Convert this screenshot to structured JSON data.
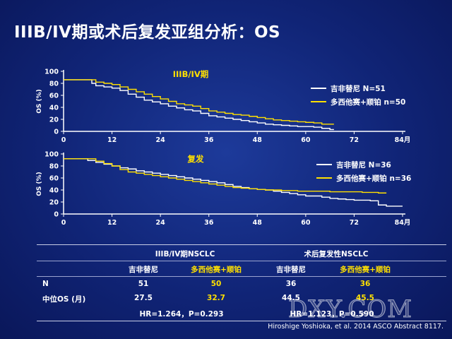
{
  "title": "IIIB/IV期或术后复发亚组分析：OS",
  "chart_data": [
    {
      "type": "line",
      "subtitle": "IIIB/IV期",
      "ylabel": "OS (%)",
      "xlim": [
        0,
        84
      ],
      "ylim": [
        0,
        100
      ],
      "xticks": [
        "0",
        "12",
        "24",
        "36",
        "48",
        "60",
        "72",
        "84月"
      ],
      "yticks": [
        "0",
        "20",
        "40",
        "60",
        "80",
        "100"
      ],
      "legend_position": "right",
      "series": [
        {
          "name": "吉非替尼 N=51",
          "color": "#ffffff",
          "x": [
            0,
            5,
            7,
            8,
            10,
            12,
            14,
            16,
            18,
            20,
            22,
            24,
            26,
            28,
            30,
            32,
            34,
            36,
            38,
            40,
            42,
            44,
            46,
            48,
            50,
            52,
            54,
            56,
            58,
            60,
            62,
            64,
            66,
            67
          ],
          "y": [
            86,
            86,
            80,
            76,
            74,
            72,
            68,
            62,
            57,
            52,
            49,
            46,
            42,
            39,
            36,
            34,
            30,
            26,
            24,
            22,
            20,
            18,
            16,
            14,
            12,
            11,
            10,
            9,
            8,
            8,
            7,
            5,
            3,
            3
          ]
        },
        {
          "name": "多西他赛+顺铂 n=50",
          "color": "#ffe000",
          "x": [
            0,
            6,
            8,
            10,
            12,
            14,
            16,
            18,
            20,
            22,
            24,
            26,
            28,
            30,
            32,
            34,
            36,
            38,
            40,
            42,
            44,
            46,
            48,
            50,
            52,
            54,
            56,
            58,
            60,
            62,
            64,
            67
          ],
          "y": [
            86,
            86,
            82,
            80,
            78,
            74,
            70,
            66,
            62,
            58,
            54,
            50,
            46,
            44,
            42,
            38,
            34,
            32,
            30,
            28,
            27,
            25,
            23,
            21,
            19,
            18,
            17,
            16,
            15,
            14,
            12,
            12
          ]
        }
      ]
    },
    {
      "type": "line",
      "subtitle": "复发",
      "ylabel": "OS (%)",
      "xlim": [
        0,
        84
      ],
      "ylim": [
        0,
        100
      ],
      "xticks": [
        "0",
        "12",
        "24",
        "36",
        "48",
        "60",
        "72",
        "84月"
      ],
      "yticks": [
        "0",
        "20",
        "40",
        "60",
        "80",
        "100"
      ],
      "legend_position": "right",
      "series": [
        {
          "name": "吉非替尼 N=36",
          "color": "#ffffff",
          "x": [
            0,
            4,
            6,
            8,
            10,
            12,
            14,
            16,
            18,
            20,
            22,
            24,
            26,
            28,
            30,
            32,
            34,
            36,
            38,
            40,
            42,
            44,
            46,
            48,
            50,
            52,
            54,
            56,
            58,
            60,
            62,
            64,
            66,
            68,
            70,
            72,
            76,
            78,
            80,
            84
          ],
          "y": [
            92,
            92,
            89,
            86,
            83,
            80,
            77,
            75,
            72,
            70,
            68,
            66,
            64,
            62,
            60,
            58,
            56,
            54,
            52,
            49,
            46,
            44,
            42,
            41,
            40,
            38,
            36,
            34,
            32,
            30,
            30,
            28,
            26,
            25,
            24,
            23,
            22,
            15,
            13,
            13
          ]
        },
        {
          "name": "多西他赛+顺铂 n=36",
          "color": "#ffe000",
          "x": [
            0,
            6,
            8,
            10,
            12,
            14,
            16,
            18,
            20,
            22,
            24,
            26,
            28,
            30,
            32,
            34,
            36,
            38,
            40,
            42,
            44,
            46,
            48,
            50,
            54,
            58,
            62,
            66,
            70,
            74,
            78,
            80
          ],
          "y": [
            92,
            92,
            88,
            84,
            80,
            74,
            70,
            68,
            66,
            64,
            62,
            60,
            58,
            56,
            54,
            52,
            50,
            48,
            46,
            44,
            43,
            42,
            41,
            40,
            39,
            38,
            38,
            37,
            37,
            36,
            35,
            35
          ]
        }
      ]
    }
  ],
  "table": {
    "group_headers": [
      "IIIB/IV期NSCLC",
      "术后复发性NSCLC"
    ],
    "arm_headers": [
      "吉非替尼",
      "多西他赛+顺铂",
      "吉非替尼",
      "多西他赛+顺铂"
    ],
    "rows": [
      {
        "label": "N",
        "values": [
          "51",
          "50",
          "36",
          "36"
        ]
      },
      {
        "label": "中位OS (月)",
        "values": [
          "27.5",
          "32.7",
          "44.5",
          "45.5"
        ]
      }
    ],
    "hr": [
      "HR=1.264，P=0.293",
      "HR=1.123，P=0.590"
    ]
  },
  "citation": "Hiroshige Yoshioka, et al. 2014 ASCO Abstract 8117.",
  "watermark": "DXY.COM"
}
